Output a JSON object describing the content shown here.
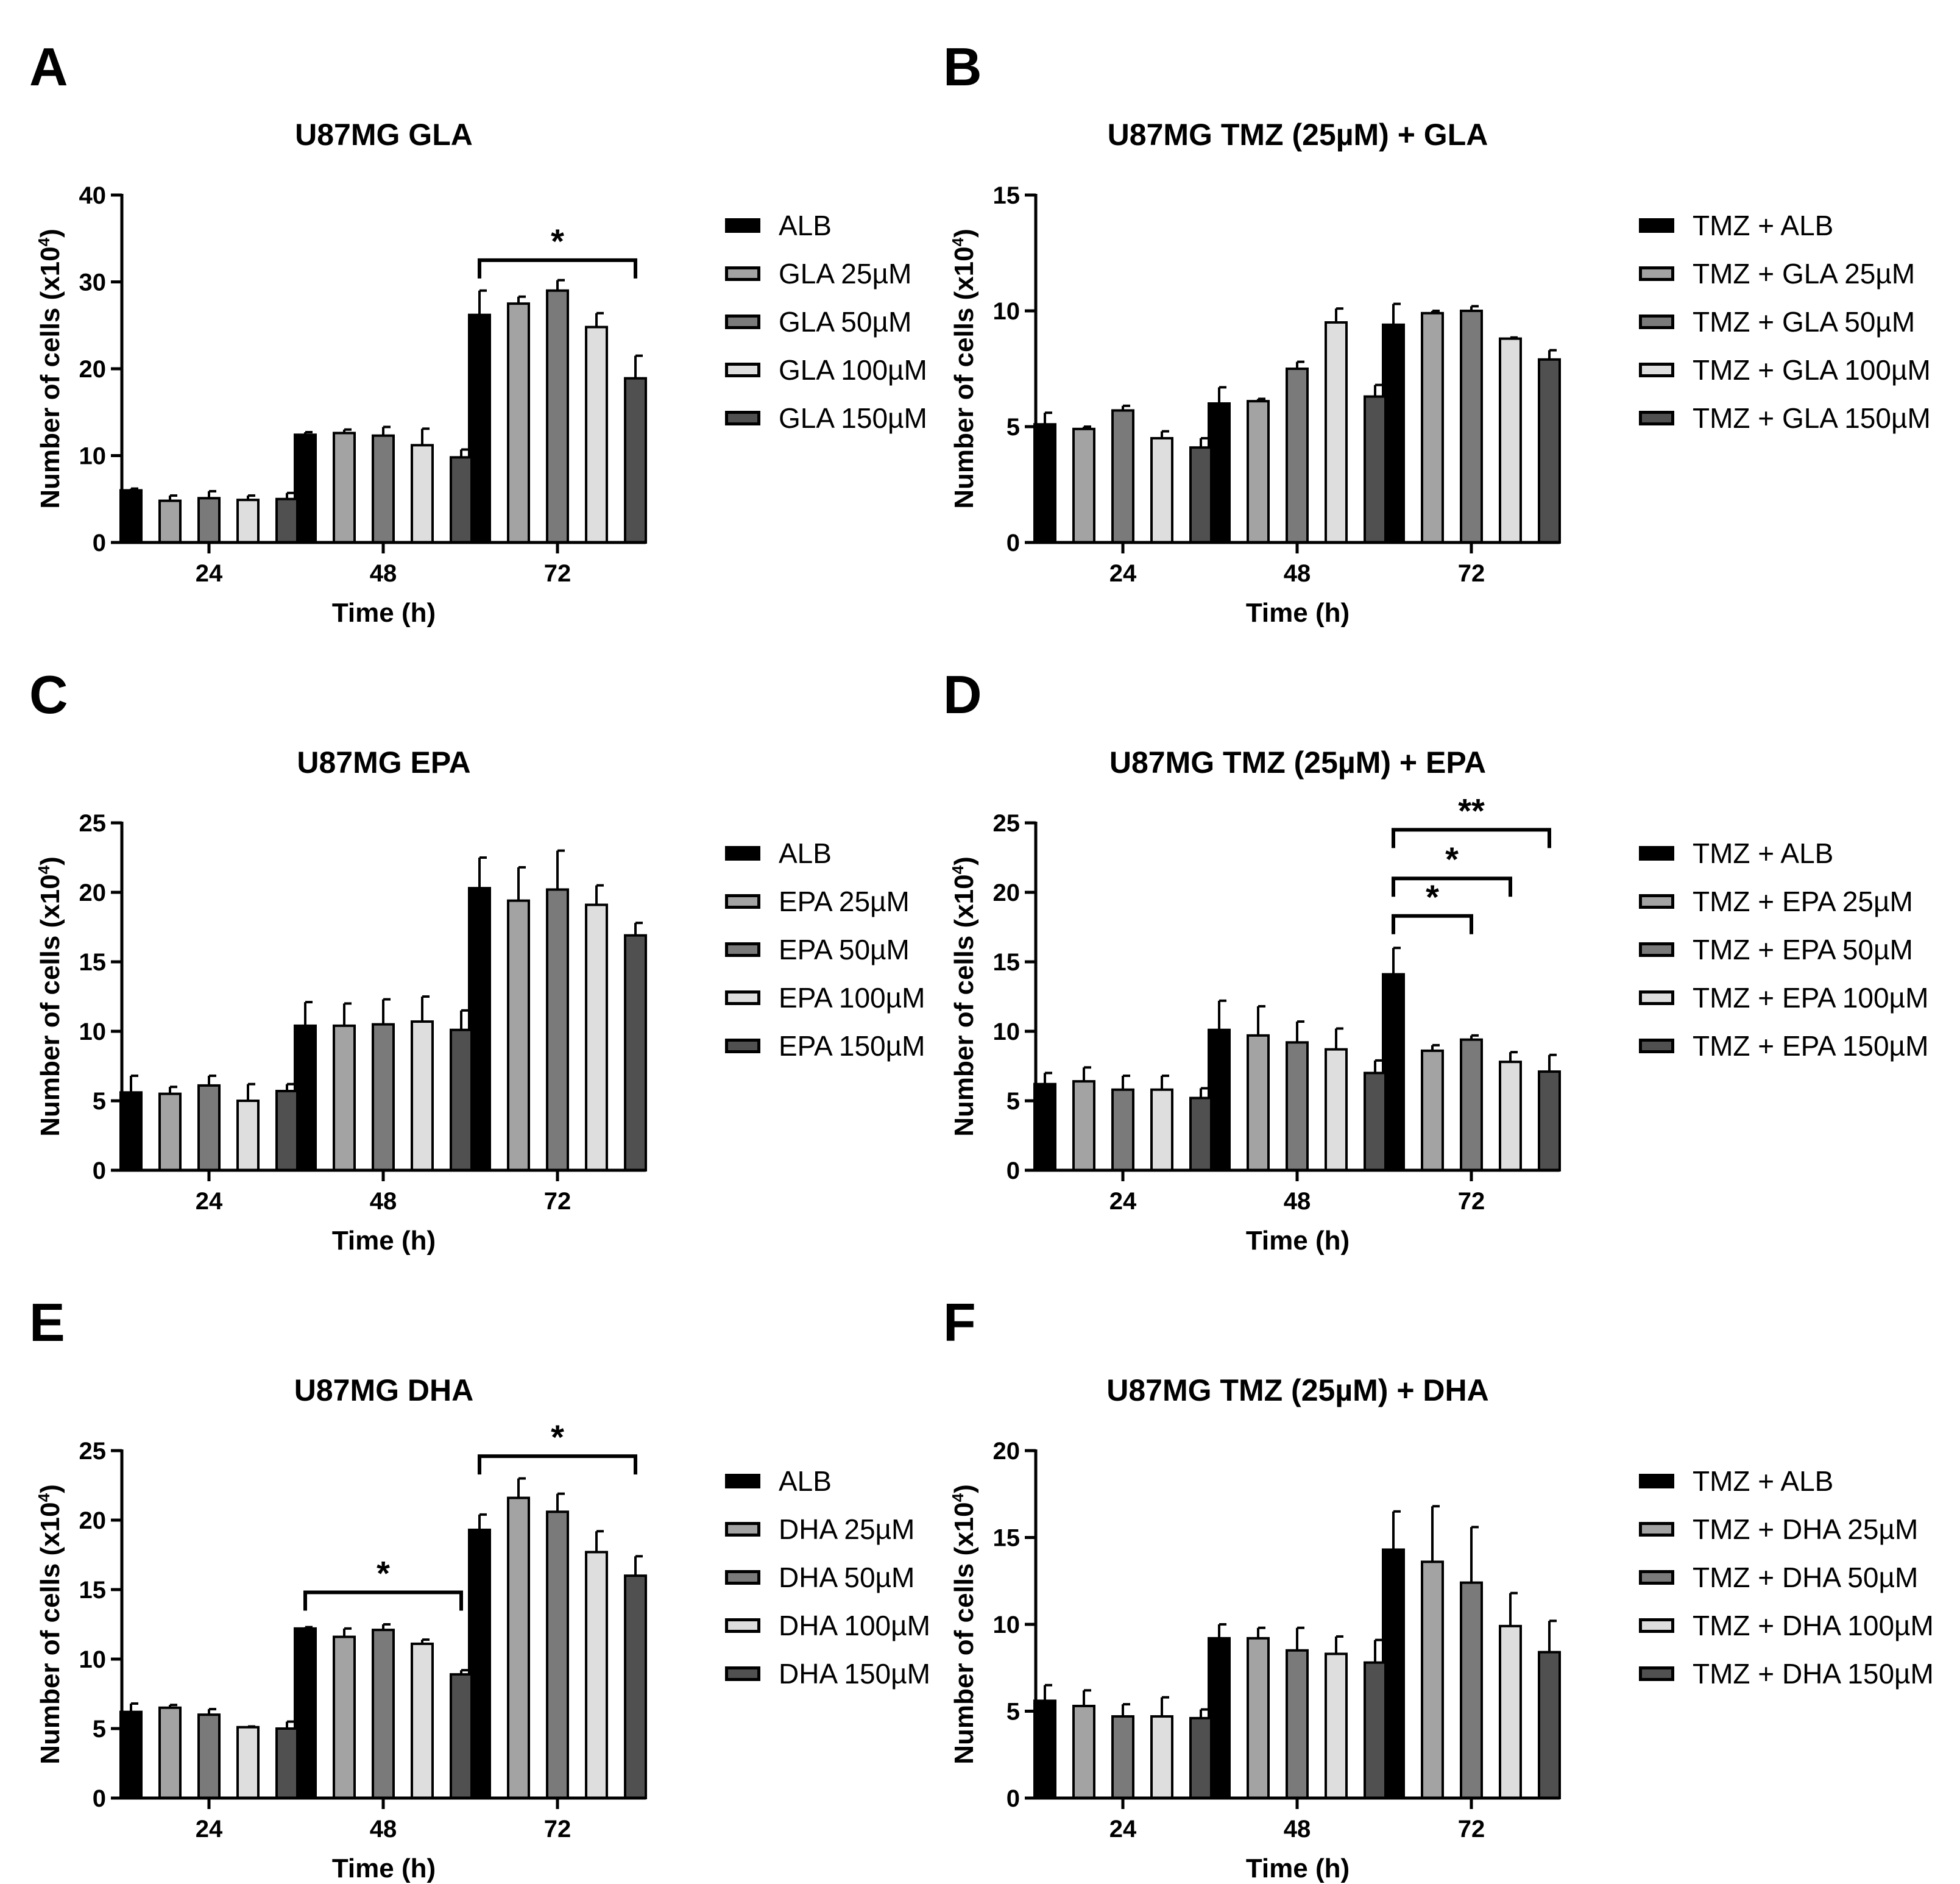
{
  "colors": {
    "series": [
      "#000000",
      "#a3a3a3",
      "#7a7a7a",
      "#dedede",
      "#505050"
    ],
    "stroke": "#000000",
    "background": "#ffffff"
  },
  "panels": [
    {
      "label": "A",
      "legend_items": [
        "ALB",
        "GLA 25µM",
        "GLA 50µM",
        "GLA 100µM",
        "GLA 150µM"
      ],
      "chart_data": {
        "type": "bar",
        "title": "U87MG GLA",
        "xlabel": "Time (h)",
        "ylabel_text": "Number of cells (x10",
        "ylabel_exp": "4",
        "ylabel_close": ")",
        "categories": [
          "24",
          "48",
          "72"
        ],
        "ylim": [
          0,
          40
        ],
        "yticks": [
          0,
          10,
          20,
          30,
          40
        ],
        "series": [
          {
            "name": "ALB",
            "values": [
              6.0,
              12.4,
              26.2
            ],
            "errors": [
              0.2,
              0.3,
              2.8
            ]
          },
          {
            "name": "GLA 25µM",
            "values": [
              4.8,
              12.6,
              27.5
            ],
            "errors": [
              0.6,
              0.4,
              0.8
            ]
          },
          {
            "name": "GLA 50µM",
            "values": [
              5.1,
              12.3,
              29.0
            ],
            "errors": [
              0.8,
              1.0,
              1.2
            ]
          },
          {
            "name": "GLA 100µM",
            "values": [
              4.9,
              11.2,
              24.8
            ],
            "errors": [
              0.5,
              1.9,
              1.6
            ]
          },
          {
            "name": "GLA 150µM",
            "values": [
              5.0,
              9.8,
              18.9
            ],
            "errors": [
              0.7,
              0.9,
              2.6
            ]
          }
        ],
        "annotations": [
          {
            "category_index": 2,
            "from_series": 0,
            "to_series": 4,
            "y_line": 32.5,
            "label": "*"
          }
        ]
      }
    },
    {
      "label": "B",
      "legend_items": [
        "TMZ + ALB",
        "TMZ + GLA 25µM",
        "TMZ + GLA 50µM",
        "TMZ + GLA 100µM",
        "TMZ + GLA 150µM"
      ],
      "chart_data": {
        "type": "bar",
        "title": "U87MG TMZ (25µM) + GLA",
        "xlabel": "Time (h)",
        "ylabel_text": "Number of cells (x10",
        "ylabel_exp": "4",
        "ylabel_close": ")",
        "categories": [
          "24",
          "48",
          "72"
        ],
        "ylim": [
          0,
          15
        ],
        "yticks": [
          0,
          5,
          10,
          15
        ],
        "series": [
          {
            "name": "TMZ + ALB",
            "values": [
              5.1,
              6.0,
              9.4
            ],
            "errors": [
              0.5,
              0.7,
              0.9
            ]
          },
          {
            "name": "TMZ + GLA 25µM",
            "values": [
              4.9,
              6.1,
              9.9
            ],
            "errors": [
              0.1,
              0.1,
              0.1
            ]
          },
          {
            "name": "TMZ + GLA 50µM",
            "values": [
              5.7,
              7.5,
              10.0
            ],
            "errors": [
              0.2,
              0.3,
              0.2
            ]
          },
          {
            "name": "TMZ + GLA 100µM",
            "values": [
              4.5,
              9.5,
              8.8
            ],
            "errors": [
              0.3,
              0.6,
              0.05
            ]
          },
          {
            "name": "TMZ + GLA 150µM",
            "values": [
              4.1,
              6.3,
              7.9
            ],
            "errors": [
              0.4,
              0.5,
              0.4
            ]
          }
        ],
        "annotations": []
      }
    },
    {
      "label": "C",
      "legend_items": [
        "ALB",
        "EPA 25µM",
        "EPA 50µM",
        "EPA 100µM",
        "EPA 150µM"
      ],
      "chart_data": {
        "type": "bar",
        "title": "U87MG EPA",
        "xlabel": "Time (h)",
        "ylabel_text": "Number of cells (x10",
        "ylabel_exp": "4",
        "ylabel_close": ")",
        "categories": [
          "24",
          "48",
          "72"
        ],
        "ylim": [
          0,
          25
        ],
        "yticks": [
          0,
          5,
          10,
          15,
          20,
          25
        ],
        "series": [
          {
            "name": "ALB",
            "values": [
              5.6,
              10.4,
              20.3
            ],
            "errors": [
              1.2,
              1.7,
              2.2
            ]
          },
          {
            "name": "EPA 25µM",
            "values": [
              5.5,
              10.4,
              19.4
            ],
            "errors": [
              0.5,
              1.6,
              2.4
            ]
          },
          {
            "name": "EPA 50µM",
            "values": [
              6.1,
              10.5,
              20.2
            ],
            "errors": [
              0.7,
              1.8,
              2.8
            ]
          },
          {
            "name": "EPA 100µM",
            "values": [
              5.0,
              10.7,
              19.1
            ],
            "errors": [
              1.2,
              1.8,
              1.4
            ]
          },
          {
            "name": "EPA 150µM",
            "values": [
              5.7,
              10.1,
              16.9
            ],
            "errors": [
              0.5,
              1.4,
              0.9
            ]
          }
        ],
        "annotations": []
      }
    },
    {
      "label": "D",
      "legend_items": [
        "TMZ + ALB",
        "TMZ + EPA 25µM",
        "TMZ + EPA 50µM",
        "TMZ + EPA 100µM",
        "TMZ + EPA 150µM"
      ],
      "chart_data": {
        "type": "bar",
        "title": "U87MG TMZ (25µM) + EPA",
        "xlabel": "Time (h)",
        "ylabel_text": "Number of cells (x10",
        "ylabel_exp": "4",
        "ylabel_close": ")",
        "categories": [
          "24",
          "48",
          "72"
        ],
        "ylim": [
          0,
          25
        ],
        "yticks": [
          0,
          5,
          10,
          15,
          20,
          25
        ],
        "series": [
          {
            "name": "TMZ + ALB",
            "values": [
              6.2,
              10.1,
              14.1
            ],
            "errors": [
              0.8,
              2.1,
              1.9
            ]
          },
          {
            "name": "TMZ + EPA 25µM",
            "values": [
              6.4,
              9.7,
              8.6
            ],
            "errors": [
              1.0,
              2.1,
              0.4
            ]
          },
          {
            "name": "TMZ + EPA 50µM",
            "values": [
              5.8,
              9.2,
              9.4
            ],
            "errors": [
              1.0,
              1.5,
              0.3
            ]
          },
          {
            "name": "TMZ + EPA 100µM",
            "values": [
              5.8,
              8.7,
              7.8
            ],
            "errors": [
              1.0,
              1.5,
              0.7
            ]
          },
          {
            "name": "TMZ + EPA 150µM",
            "values": [
              5.2,
              7.0,
              7.1
            ],
            "errors": [
              0.7,
              0.9,
              1.2
            ]
          }
        ],
        "annotations": [
          {
            "category_index": 2,
            "from_series": 0,
            "to_series": 4,
            "y_line": 24.5,
            "label": "**"
          },
          {
            "category_index": 2,
            "from_series": 0,
            "to_series": 3,
            "y_line": 21.0,
            "label": "*"
          },
          {
            "category_index": 2,
            "from_series": 0,
            "to_series": 2,
            "y_line": 18.3,
            "label": "*"
          }
        ]
      }
    },
    {
      "label": "E",
      "legend_items": [
        "ALB",
        "DHA 25µM",
        "DHA 50µM",
        "DHA 100µM",
        "DHA 150µM"
      ],
      "chart_data": {
        "type": "bar",
        "title": "U87MG DHA",
        "xlabel": "Time (h)",
        "ylabel_text": "Number of cells (x10",
        "ylabel_exp": "4",
        "ylabel_close": ")",
        "categories": [
          "24",
          "48",
          "72"
        ],
        "ylim": [
          0,
          25
        ],
        "yticks": [
          0,
          5,
          10,
          15,
          20,
          25
        ],
        "series": [
          {
            "name": "ALB",
            "values": [
              6.2,
              12.2,
              19.3
            ],
            "errors": [
              0.6,
              0.1,
              1.1
            ]
          },
          {
            "name": "DHA 25µM",
            "values": [
              6.5,
              11.6,
              21.6
            ],
            "errors": [
              0.2,
              0.6,
              1.4
            ]
          },
          {
            "name": "DHA 50µM",
            "values": [
              6.0,
              12.1,
              20.6
            ],
            "errors": [
              0.4,
              0.4,
              1.3
            ]
          },
          {
            "name": "DHA 100µM",
            "values": [
              5.1,
              11.1,
              17.7
            ],
            "errors": [
              0.05,
              0.3,
              1.5
            ]
          },
          {
            "name": "DHA 150µM",
            "values": [
              5.0,
              8.9,
              16.0
            ],
            "errors": [
              0.5,
              0.3,
              1.4
            ]
          }
        ],
        "annotations": [
          {
            "category_index": 1,
            "from_series": 0,
            "to_series": 4,
            "y_line": 14.8,
            "label": "*"
          },
          {
            "category_index": 2,
            "from_series": 0,
            "to_series": 4,
            "y_line": 24.6,
            "label": "*"
          }
        ]
      }
    },
    {
      "label": "F",
      "legend_items": [
        "TMZ  + ALB",
        "TMZ + DHA 25µM",
        "TMZ + DHA 50µM",
        "TMZ + DHA 100µM",
        "TMZ + DHA 150µM"
      ],
      "chart_data": {
        "type": "bar",
        "title": "U87MG TMZ (25µM) + DHA",
        "xlabel": "Time (h)",
        "ylabel_text": "Number of cells (x10",
        "ylabel_exp": "4",
        "ylabel_close": ")",
        "categories": [
          "24",
          "48",
          "72"
        ],
        "ylim": [
          0,
          20
        ],
        "yticks": [
          0,
          5,
          10,
          15,
          20
        ],
        "series": [
          {
            "name": "TMZ  + ALB",
            "values": [
              5.6,
              9.2,
              14.3
            ],
            "errors": [
              0.9,
              0.8,
              2.2
            ]
          },
          {
            "name": "TMZ + DHA 25µM",
            "values": [
              5.3,
              9.2,
              13.6
            ],
            "errors": [
              0.9,
              0.6,
              3.2
            ]
          },
          {
            "name": "TMZ + DHA 50µM",
            "values": [
              4.7,
              8.5,
              12.4
            ],
            "errors": [
              0.7,
              1.3,
              3.2
            ]
          },
          {
            "name": "TMZ + DHA 100µM",
            "values": [
              4.7,
              8.3,
              9.9
            ],
            "errors": [
              1.1,
              1.0,
              1.9
            ]
          },
          {
            "name": "TMZ + DHA 150µM",
            "values": [
              4.6,
              7.8,
              8.4
            ],
            "errors": [
              0.5,
              1.3,
              1.8
            ]
          }
        ],
        "annotations": []
      }
    }
  ]
}
